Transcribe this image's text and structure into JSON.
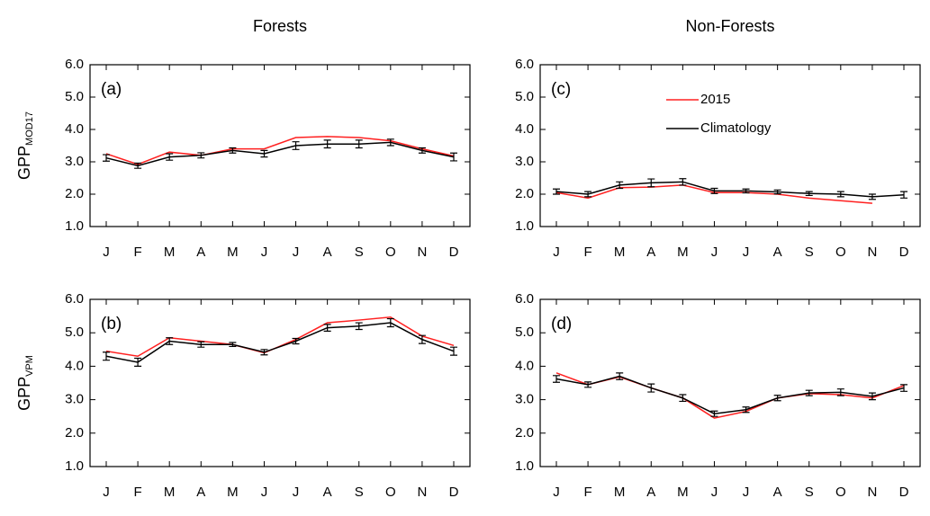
{
  "column_titles": [
    "Forests",
    "Non-Forests"
  ],
  "row_labels": [
    {
      "text": "GPP",
      "subscript": "MOD17"
    },
    {
      "text": "GPP",
      "subscript": "VPM"
    }
  ],
  "chart_data": [
    {
      "type": "line",
      "label": "(a)",
      "categories": [
        "J",
        "F",
        "M",
        "A",
        "M",
        "J",
        "J",
        "A",
        "S",
        "O",
        "N",
        "D"
      ],
      "ylim": [
        1,
        6
      ],
      "yticks": [
        {
          "value": 1,
          "label": "1.0"
        },
        {
          "value": 2,
          "label": "2.0"
        },
        {
          "value": 3,
          "label": "3.0"
        },
        {
          "value": 4,
          "label": "4.0"
        },
        {
          "value": 5,
          "label": "5.0"
        },
        {
          "value": 6,
          "label": "6.0"
        }
      ],
      "series": [
        {
          "color": "#ff2020",
          "values": [
            3.25,
            2.92,
            3.3,
            3.2,
            3.4,
            3.4,
            3.75,
            3.78,
            3.75,
            3.65,
            3.4,
            3.18
          ]
        },
        {
          "color": "#000000",
          "values": [
            3.12,
            2.88,
            3.15,
            3.2,
            3.35,
            3.25,
            3.5,
            3.55,
            3.55,
            3.6,
            3.35,
            3.15
          ],
          "errors": [
            0.1,
            0.08,
            0.1,
            0.08,
            0.08,
            0.1,
            0.12,
            0.12,
            0.12,
            0.1,
            0.08,
            0.12
          ]
        }
      ]
    },
    {
      "type": "line",
      "label": "(c)",
      "categories": [
        "J",
        "F",
        "M",
        "A",
        "M",
        "J",
        "J",
        "A",
        "S",
        "O",
        "N",
        "D"
      ],
      "ylim": [
        1,
        6
      ],
      "yticks": [
        {
          "value": 1,
          "label": "1.0"
        },
        {
          "value": 2,
          "label": "2.0"
        },
        {
          "value": 3,
          "label": "3.0"
        },
        {
          "value": 4,
          "label": "4.0"
        },
        {
          "value": 5,
          "label": "5.0"
        },
        {
          "value": 6,
          "label": "6.0"
        }
      ],
      "legend": "upper right",
      "series": [
        {
          "name": "2015",
          "color": "#ff2020",
          "values": [
            2.05,
            1.88,
            2.2,
            2.22,
            2.28,
            2.05,
            2.05,
            2.0,
            1.88,
            1.8,
            1.72,
            null
          ]
        },
        {
          "name": "Climatology",
          "color": "#000000",
          "values": [
            2.08,
            2.0,
            2.28,
            2.35,
            2.38,
            2.1,
            2.1,
            2.07,
            2.02,
            2.0,
            1.92,
            1.98
          ],
          "errors": [
            0.08,
            0.08,
            0.1,
            0.12,
            0.1,
            0.08,
            0.06,
            0.06,
            0.06,
            0.08,
            0.08,
            0.1
          ]
        }
      ]
    },
    {
      "type": "line",
      "label": "(b)",
      "categories": [
        "J",
        "F",
        "M",
        "A",
        "M",
        "J",
        "J",
        "A",
        "S",
        "O",
        "N",
        "D"
      ],
      "ylim": [
        1,
        6
      ],
      "yticks": [
        {
          "value": 1,
          "label": "1.0"
        },
        {
          "value": 2,
          "label": "2.0"
        },
        {
          "value": 3,
          "label": "3.0"
        },
        {
          "value": 4,
          "label": "4.0"
        },
        {
          "value": 5,
          "label": "5.0"
        },
        {
          "value": 6,
          "label": "6.0"
        }
      ],
      "series": [
        {
          "color": "#ff2020",
          "values": [
            4.45,
            4.3,
            4.85,
            4.75,
            4.65,
            4.4,
            4.8,
            5.3,
            5.38,
            5.47,
            4.9,
            4.62
          ]
        },
        {
          "color": "#000000",
          "values": [
            4.3,
            4.12,
            4.75,
            4.65,
            4.65,
            4.42,
            4.75,
            5.15,
            5.2,
            5.3,
            4.8,
            4.45
          ],
          "errors": [
            0.12,
            0.12,
            0.1,
            0.08,
            0.06,
            0.08,
            0.08,
            0.1,
            0.1,
            0.12,
            0.12,
            0.12
          ]
        }
      ]
    },
    {
      "type": "line",
      "label": "(d)",
      "categories": [
        "J",
        "F",
        "M",
        "A",
        "M",
        "J",
        "J",
        "A",
        "S",
        "O",
        "N",
        "D"
      ],
      "ylim": [
        1,
        6
      ],
      "yticks": [
        {
          "value": 1,
          "label": "1.0"
        },
        {
          "value": 2,
          "label": "2.0"
        },
        {
          "value": 3,
          "label": "3.0"
        },
        {
          "value": 4,
          "label": "4.0"
        },
        {
          "value": 5,
          "label": "5.0"
        },
        {
          "value": 6,
          "label": "6.0"
        }
      ],
      "series": [
        {
          "color": "#ff2020",
          "values": [
            3.8,
            3.45,
            3.68,
            3.35,
            3.05,
            2.45,
            2.65,
            3.05,
            3.18,
            3.15,
            3.05,
            3.42
          ]
        },
        {
          "color": "#000000",
          "values": [
            3.62,
            3.45,
            3.7,
            3.35,
            3.05,
            2.58,
            2.7,
            3.05,
            3.2,
            3.22,
            3.1,
            3.35
          ],
          "errors": [
            0.1,
            0.08,
            0.1,
            0.12,
            0.1,
            0.08,
            0.08,
            0.08,
            0.08,
            0.1,
            0.1,
            0.1
          ]
        }
      ]
    }
  ]
}
